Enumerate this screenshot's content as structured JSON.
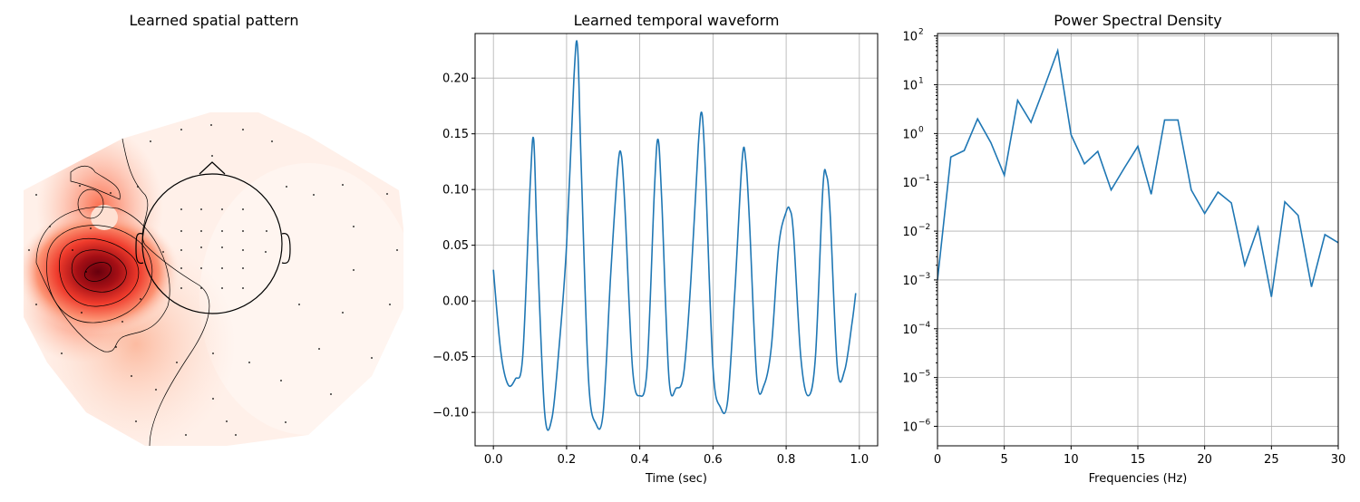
{
  "chart_data": [
    {
      "type": "heatmap",
      "title": "Learned spatial pattern",
      "description_kind": "topographic-scalp-map",
      "colormap": "Reds",
      "colors": {
        "max": "#67000d",
        "high": "#cb181d",
        "mid": "#fb6a4a",
        "low": "#fee0d2",
        "background": "#fff5f0"
      }
    },
    {
      "type": "line",
      "title": "Learned temporal waveform",
      "xlabel": "Time (sec)",
      "ylabel": "",
      "xlim": [
        -0.05,
        1.05
      ],
      "ylim": [
        -0.13,
        0.24
      ],
      "xticks": [
        0.0,
        0.2,
        0.4,
        0.6,
        0.8,
        1.0
      ],
      "xtick_labels": [
        "0.0",
        "0.2",
        "0.4",
        "0.6",
        "0.8",
        "1.0"
      ],
      "yticks": [
        -0.1,
        -0.05,
        0.0,
        0.05,
        0.1,
        0.15,
        0.2
      ],
      "ytick_labels": [
        "−0.10",
        "−0.05",
        "0.00",
        "0.05",
        "0.10",
        "0.15",
        "0.20"
      ],
      "grid": true,
      "color": "#1f77b4",
      "series": [
        {
          "x": [
            0.0,
            0.02,
            0.04,
            0.06,
            0.08,
            0.1,
            0.11,
            0.12,
            0.14,
            0.16,
            0.18,
            0.2,
            0.22,
            0.23,
            0.24,
            0.26,
            0.28,
            0.3,
            0.32,
            0.34,
            0.35,
            0.36,
            0.38,
            0.4,
            0.42,
            0.44,
            0.45,
            0.46,
            0.48,
            0.5,
            0.52,
            0.54,
            0.56,
            0.57,
            0.58,
            0.6,
            0.62,
            0.64,
            0.66,
            0.68,
            0.69,
            0.7,
            0.72,
            0.74,
            0.76,
            0.78,
            0.8,
            0.81,
            0.82,
            0.84,
            0.86,
            0.88,
            0.9,
            0.91,
            0.92,
            0.94,
            0.96,
            0.98,
            0.99
          ],
          "y": [
            0.028,
            -0.045,
            -0.075,
            -0.07,
            -0.05,
            0.1,
            0.145,
            0.05,
            -0.1,
            -0.105,
            -0.04,
            0.05,
            0.2,
            0.228,
            0.12,
            -0.07,
            -0.11,
            -0.1,
            0.02,
            0.12,
            0.13,
            0.08,
            -0.06,
            -0.085,
            -0.06,
            0.1,
            0.145,
            0.09,
            -0.07,
            -0.078,
            -0.065,
            0.02,
            0.14,
            0.168,
            0.11,
            -0.06,
            -0.095,
            -0.09,
            0.01,
            0.128,
            0.125,
            0.07,
            -0.07,
            -0.075,
            -0.04,
            0.05,
            0.08,
            0.082,
            0.06,
            -0.05,
            -0.085,
            -0.05,
            0.1,
            0.113,
            0.08,
            -0.06,
            -0.062,
            -0.02,
            0.007
          ]
        }
      ]
    },
    {
      "type": "line",
      "title": "Power Spectral Density",
      "xlabel": "Frequencies (Hz)",
      "ylabel": "",
      "yscale": "log",
      "xlim": [
        0,
        30
      ],
      "ylim_exp": [
        -6.4,
        2.05
      ],
      "xticks": [
        0,
        5,
        10,
        15,
        20,
        25,
        30
      ],
      "xtick_labels": [
        "0",
        "5",
        "10",
        "15",
        "20",
        "25",
        "30"
      ],
      "yticks_exp": [
        -6,
        -5,
        -4,
        -3,
        -2,
        -1,
        0,
        1,
        2
      ],
      "grid": true,
      "color": "#1f77b4",
      "series": [
        {
          "x": [
            0,
            1,
            2,
            3,
            4,
            5,
            6,
            7,
            8,
            9,
            10,
            11,
            12,
            13,
            14,
            15,
            16,
            17,
            18,
            19,
            20,
            21,
            22,
            23,
            24,
            25,
            26,
            27,
            28,
            29,
            30
          ],
          "y": [
            0.001,
            0.33,
            0.45,
            2.0,
            0.65,
            0.14,
            4.8,
            1.7,
            9.0,
            50.0,
            0.95,
            0.24,
            0.43,
            0.07,
            0.2,
            0.55,
            0.057,
            1.9,
            1.9,
            0.07,
            0.023,
            0.063,
            0.038,
            0.002,
            0.012,
            0.00045,
            0.04,
            0.021,
            0.00072,
            0.0085,
            0.0058
          ]
        }
      ]
    }
  ]
}
